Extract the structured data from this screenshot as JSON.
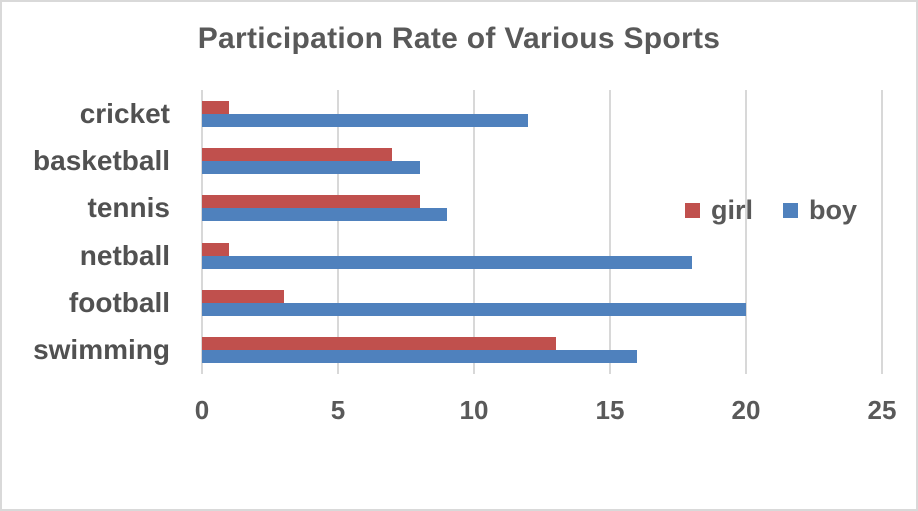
{
  "chart_data": {
    "type": "bar",
    "orientation": "horizontal",
    "title": "Participation Rate of Various Sports",
    "categories": [
      "cricket",
      "basketball",
      "tennis",
      "netball",
      "football",
      "swimming"
    ],
    "series": [
      {
        "name": "girl",
        "color": "#C0504D",
        "values": [
          1,
          7,
          8,
          1,
          3,
          13
        ]
      },
      {
        "name": "boy",
        "color": "#4F81BD",
        "values": [
          12,
          8,
          9,
          18,
          20,
          16
        ]
      }
    ],
    "x_ticks": [
      "0",
      "5",
      "10",
      "15",
      "20",
      "25"
    ],
    "xlim": [
      0,
      25
    ],
    "xlabel": "",
    "ylabel": "",
    "grid": "vertical-gridlines-on",
    "legend_position": "middle-right",
    "legend_entries": [
      "girl",
      "boy"
    ]
  },
  "colors": {
    "girl_series": "#C0504D",
    "boy_series": "#4F81BD",
    "title_text": "#595959",
    "axis_text": "#595959",
    "category_text": "#515151",
    "gridline": "#D8D8D8",
    "border": "#D9D9D9",
    "background": "#FFFFFF"
  }
}
